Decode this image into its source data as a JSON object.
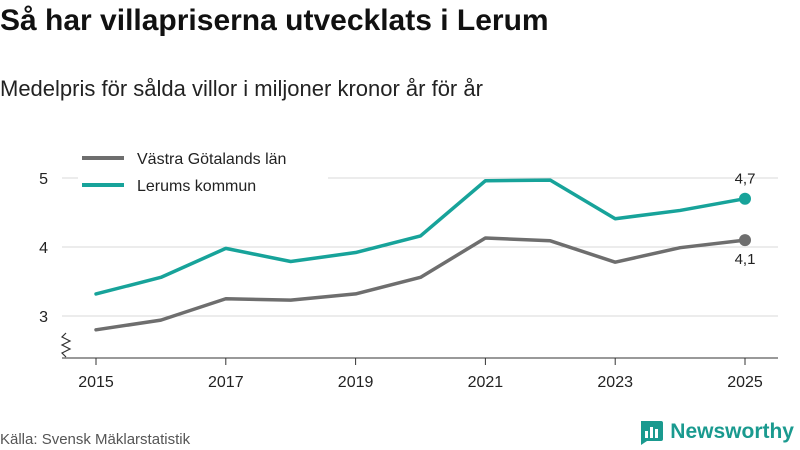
{
  "title": "Så har villapriserna utvecklats i Lerum",
  "subtitle": "Medelpris för sålda villor i miljoner kronor år för år",
  "source": "Källa: Svensk Mäklarstatistik",
  "brand": {
    "name": "Newsworthy",
    "icon": "bar-chart-logo-icon",
    "color": "#1a9a8f"
  },
  "chart_data": {
    "type": "line",
    "title": "Så har villapriserna utvecklats i Lerum",
    "subtitle": "Medelpris för sålda villor i miljoner kronor år för år",
    "xlabel": "",
    "ylabel": "",
    "x": [
      2015,
      2016,
      2017,
      2018,
      2019,
      2020,
      2021,
      2022,
      2023,
      2024,
      2025
    ],
    "x_tick_labels": [
      "2015",
      "2017",
      "2019",
      "2021",
      "2023",
      "2025"
    ],
    "y_tick_labels": [
      "3",
      "4",
      "5"
    ],
    "xlim": [
      2015,
      2025
    ],
    "ylim": [
      2.6,
      5.2
    ],
    "grid": true,
    "axis_break": true,
    "legend_position": "top-left",
    "series": [
      {
        "name": "Västra Götalands län",
        "color": "#6e6e6e",
        "values": [
          2.8,
          2.94,
          3.25,
          3.23,
          3.32,
          3.56,
          4.13,
          4.09,
          3.78,
          3.99,
          4.1
        ],
        "end_label": "4,1"
      },
      {
        "name": "Lerums kommun",
        "color": "#17a39a",
        "values": [
          3.32,
          3.56,
          3.98,
          3.79,
          3.92,
          4.16,
          4.96,
          4.97,
          4.41,
          4.53,
          4.7
        ],
        "end_label": "4,7"
      }
    ]
  }
}
